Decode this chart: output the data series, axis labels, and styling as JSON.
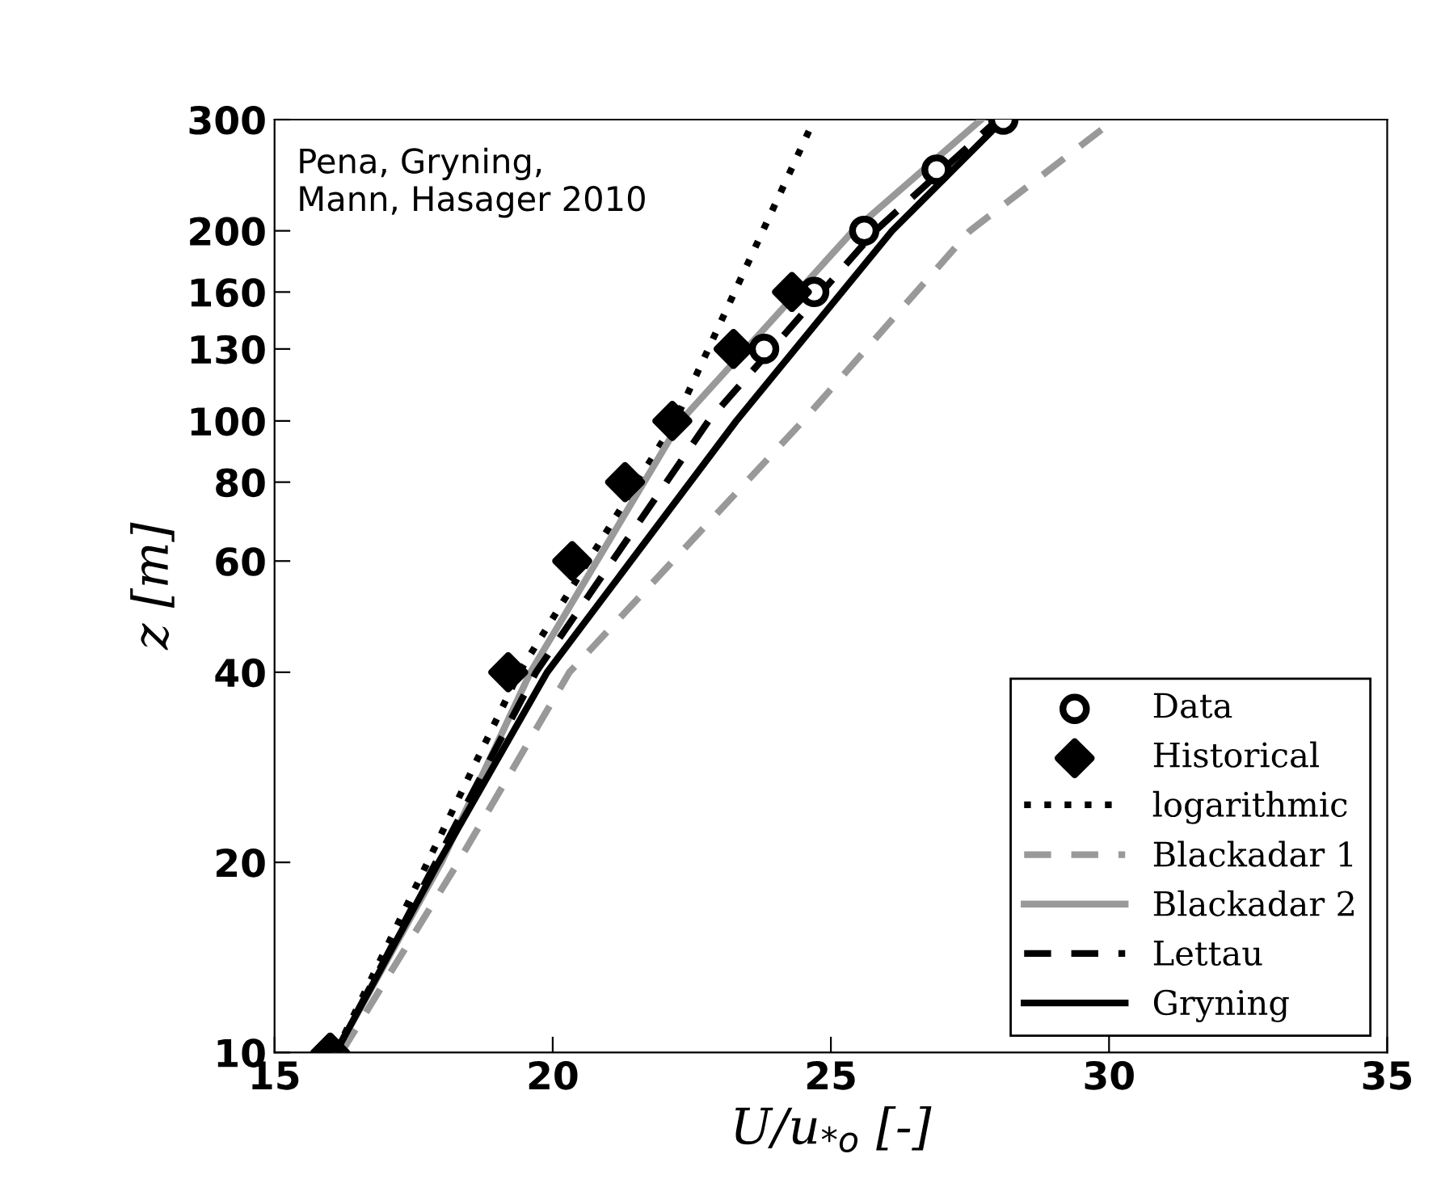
{
  "chart_data": {
    "type": "line",
    "xlabel": "U/u$_{*o}$ [-]",
    "ylabel": "z [m]",
    "log": "y",
    "xlim": [
      15,
      35
    ],
    "xticks": [
      15,
      20,
      25,
      30,
      35
    ],
    "ylim": [
      10,
      300
    ],
    "yticks": [
      10,
      20,
      40,
      60,
      80,
      100,
      130,
      160,
      200,
      300
    ],
    "grid": false,
    "legend": "bottom right",
    "annotations": [
      "Pena, Gryning,\nMann, Hasager 2010"
    ],
    "series": [
      {
        "name": "Data",
        "type": "scatter",
        "marker": "circle",
        "color": "#000000",
        "x": [
          23.8,
          24.7,
          25.6,
          26.9,
          28.1
        ],
        "values": [
          130,
          160,
          200,
          250,
          300
        ]
      },
      {
        "name": "Historical",
        "type": "scatter",
        "marker": "diamond",
        "color": "#000000",
        "x": [
          16.0,
          19.2,
          20.35,
          21.3,
          22.15,
          23.25,
          24.3
        ],
        "values": [
          10,
          40,
          60,
          80,
          100,
          130,
          160
        ]
      },
      {
        "name": "logarithmic",
        "line_style": "dotted",
        "color": "#000000",
        "x": [
          16.1,
          19.4,
          22.2,
          24.7
        ],
        "values": [
          10,
          40,
          100,
          300
        ]
      },
      {
        "name": "Blackadar 1",
        "line_style": "dashed",
        "color": "#999999",
        "x": [
          16.2,
          18.3,
          20.3,
          24.5,
          27.5,
          30.1
        ],
        "values": [
          10,
          20,
          40,
          100,
          200,
          300
        ]
      },
      {
        "name": "Blackadar 2",
        "line_style": "solid",
        "color": "#999999",
        "x": [
          16.1,
          18.0,
          19.6,
          22.3,
          25.4,
          27.7
        ],
        "values": [
          10,
          20,
          40,
          100,
          200,
          300
        ]
      },
      {
        "name": "Lettau",
        "line_style": "dashed",
        "color": "#000000",
        "x": [
          16.1,
          17.9,
          19.7,
          22.8,
          25.8,
          28.0
        ],
        "values": [
          10,
          20,
          40,
          100,
          200,
          300
        ]
      },
      {
        "name": "Gryning",
        "line_style": "solid",
        "color": "#000000",
        "x": [
          16.1,
          17.95,
          19.9,
          23.3,
          26.1,
          28.1
        ],
        "values": [
          10,
          20,
          40,
          100,
          200,
          300
        ]
      }
    ]
  }
}
